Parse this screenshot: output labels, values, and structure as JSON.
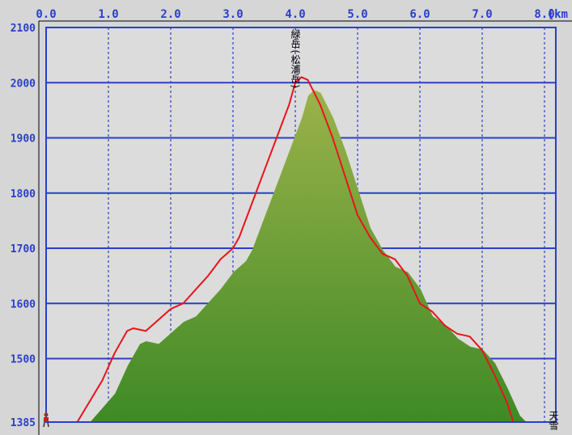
{
  "colors": {
    "background": "#d6d6d6",
    "plot_bg": "#dcdcdc",
    "grid": "#2a3fc9",
    "profile_line": "#e8141c",
    "fill_top": "#9bb24a",
    "fill_bottom": "#3f8a26"
  },
  "chart_data": {
    "type": "area",
    "title": "",
    "xlabel": "",
    "ylabel": "",
    "x_unit": "km",
    "xlim": [
      0,
      8.2
    ],
    "ylim": [
      1385,
      2100
    ],
    "x_ticks": [
      "0.0",
      "1.0",
      "2.0",
      "3.0",
      "4.0",
      "5.0",
      "6.0",
      "7.0",
      "8.0"
    ],
    "y_ticks": [
      1385,
      1500,
      1600,
      1700,
      1800,
      1900,
      2000,
      2100
    ],
    "grid": true,
    "series": [
      {
        "x": [
          0.0,
          0.5,
          0.9,
          1.1,
          1.3,
          1.4,
          1.6,
          1.8,
          2.0,
          2.2,
          2.4,
          2.6,
          2.8,
          3.0,
          3.1,
          3.3,
          3.5,
          3.7,
          3.9,
          4.0,
          4.1,
          4.2,
          4.4,
          4.6,
          4.8,
          5.0,
          5.2,
          5.4,
          5.6,
          5.8,
          6.0,
          6.2,
          6.4,
          6.6,
          6.8,
          7.0,
          7.2,
          7.4,
          7.5
        ],
        "y": [
          1385,
          1385,
          1460,
          1510,
          1550,
          1555,
          1550,
          1570,
          1590,
          1600,
          1625,
          1650,
          1680,
          1700,
          1720,
          1780,
          1840,
          1900,
          1960,
          2000,
          2010,
          2005,
          1960,
          1900,
          1830,
          1760,
          1720,
          1690,
          1680,
          1650,
          1600,
          1585,
          1560,
          1545,
          1540,
          1515,
          1470,
          1420,
          1385
        ]
      }
    ],
    "waypoints": [
      {
        "x": 4.0,
        "label": "緑岳(松浦岳)"
      },
      {
        "x": 8.2,
        "label": "天雪"
      }
    ]
  }
}
